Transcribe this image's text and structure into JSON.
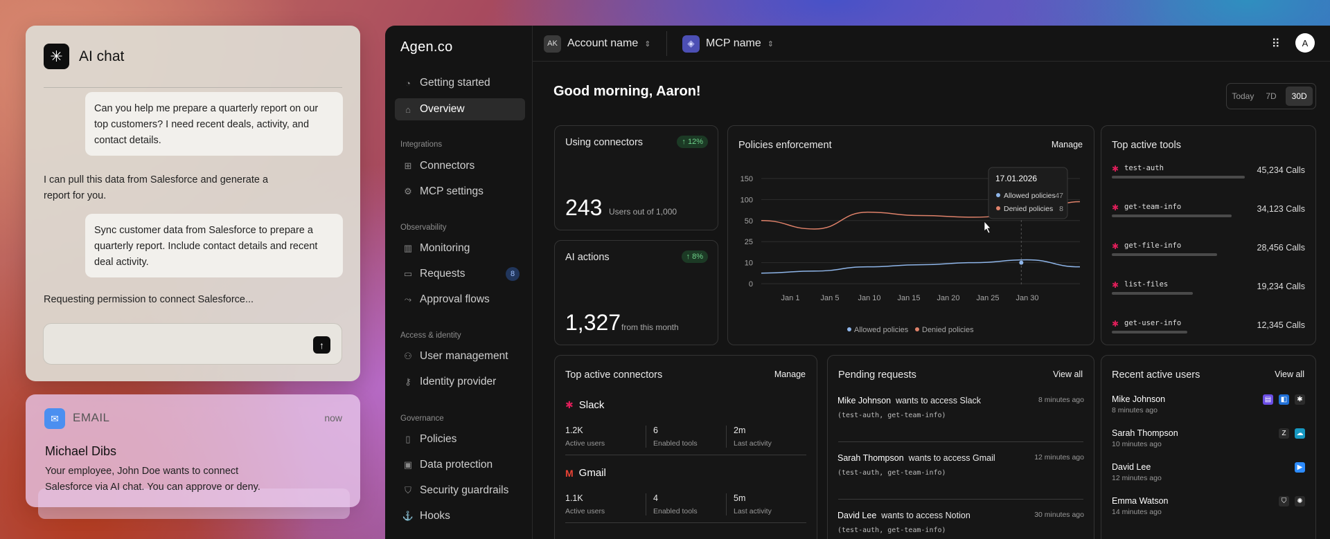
{
  "chat": {
    "title": "AI chat",
    "messages": [
      {
        "role": "user",
        "text": "Can you help me prepare a quarterly report on our top customers? I need recent deals, activity, and contact details."
      },
      {
        "role": "assistant",
        "text": "I can pull this data from Salesforce and generate a report for you."
      },
      {
        "role": "user",
        "text": "Sync customer data from Salesforce to prepare a quarterly report. Include contact details and recent deal activity."
      },
      {
        "role": "assistant",
        "text": "Requesting permission to connect Salesforce..."
      }
    ],
    "input_placeholder": ""
  },
  "email": {
    "label": "EMAIL",
    "time": "now",
    "from": "Michael Dibs",
    "body": "Your employee, John Doe wants to connect Salesforce via AI chat. You can approve or deny."
  },
  "app": {
    "brand": "Agen.co",
    "account": {
      "initials": "AK",
      "name": "Account name"
    },
    "mcp": {
      "name": "MCP name"
    },
    "user_initial": "A",
    "nav": {
      "getting_started": "Getting started",
      "overview": "Overview",
      "sec_integrations": "Integrations",
      "connectors": "Connectors",
      "mcp_settings": "MCP settings",
      "sec_observability": "Observability",
      "monitoring": "Monitoring",
      "requests": "Requests",
      "requests_badge": "8",
      "approval_flows": "Approval flows",
      "sec_access": "Access & identity",
      "user_management": "User management",
      "identity_provider": "Identity provider",
      "sec_governance": "Governance",
      "policies": "Policies",
      "data_protection": "Data protection",
      "security_guardrails": "Security guardrails",
      "hooks": "Hooks"
    },
    "greeting": "Good morning, Aaron!",
    "range": {
      "today": "Today",
      "d7": "7D",
      "d30": "30D",
      "selected": "30D"
    },
    "using_connectors": {
      "title": "Using connectors",
      "change": "↑ 12%",
      "value": "243",
      "sub": "Users out of 1,000"
    },
    "ai_actions": {
      "title": "AI actions",
      "change": "↑ 8%",
      "value": "1,327",
      "sub": "from this month"
    },
    "policies": {
      "title": "Policies enforcement",
      "link": "Manage"
    },
    "top_tools": {
      "title": "Top active tools",
      "items": [
        {
          "name": "test-auth",
          "calls": "45,234 Calls",
          "share": 1.0
        },
        {
          "name": "get-team-info",
          "calls": "34,123 Calls",
          "share": 0.9
        },
        {
          "name": "get-file-info",
          "calls": "28,456 Calls",
          "share": 0.79
        },
        {
          "name": "list-files",
          "calls": "19,234 Calls",
          "share": 0.61
        },
        {
          "name": "get-user-info",
          "calls": "12,345 Calls",
          "share": 0.57
        }
      ]
    },
    "top_connectors": {
      "title": "Top active connectors",
      "link": "Manage",
      "items": [
        {
          "name": "Slack",
          "active_users": "1.2K",
          "active_users_label": "Active users",
          "tools": "6",
          "tools_label": "Enabled tools",
          "last": "2m",
          "last_label": "Last activity"
        },
        {
          "name": "Gmail",
          "active_users": "1.1K",
          "active_users_label": "Active users",
          "tools": "4",
          "tools_label": "Enabled tools",
          "last": "5m",
          "last_label": "Last activity"
        }
      ]
    },
    "pending": {
      "title": "Pending requests",
      "link": "View all",
      "items": [
        {
          "who": "Mike Johnson",
          "action": "wants to access Slack",
          "time": "8 minutes ago",
          "tools": "(test-auth, get-team-info)"
        },
        {
          "who": "Sarah Thompson",
          "action": "wants to access Gmail",
          "time": "12 minutes ago",
          "tools": "(test-auth, get-team-info)"
        },
        {
          "who": "David Lee",
          "action": "wants to access Notion",
          "time": "30 minutes ago",
          "tools": "(test-auth, get-team-info)"
        }
      ]
    },
    "recent_users": {
      "title": "Recent active users",
      "link": "View all",
      "items": [
        {
          "name": "Mike Johnson",
          "time": "8 minutes ago"
        },
        {
          "name": "Sarah Thompson",
          "time": "10 minutes ago"
        },
        {
          "name": "David Lee",
          "time": "12 minutes ago"
        },
        {
          "name": "Emma Watson",
          "time": "14 minutes ago"
        }
      ]
    }
  },
  "chart_data": {
    "type": "line",
    "title": "Policies enforcement",
    "x_ticks": [
      "Jan 1",
      "Jan 5",
      "Jan 10",
      "Jan 15",
      "Jan 20",
      "Jan 25",
      "Jan 30"
    ],
    "y_ticks": [
      "0",
      "10",
      "25",
      "50",
      "100",
      "150"
    ],
    "series": [
      {
        "name": "Allowed policies",
        "color": "#8fb6ea",
        "values": [
          5,
          6,
          8,
          9,
          10,
          12,
          8
        ]
      },
      {
        "name": "Denied policies",
        "color": "#e0826a",
        "values": [
          50,
          40,
          70,
          62,
          58,
          65,
          95
        ]
      }
    ],
    "tooltip": {
      "date": "17.01.2026",
      "allowed_label": "Allowed policies",
      "allowed": "47",
      "denied_label": "Denied policies",
      "denied": "8"
    },
    "legend_position": "bottom"
  }
}
